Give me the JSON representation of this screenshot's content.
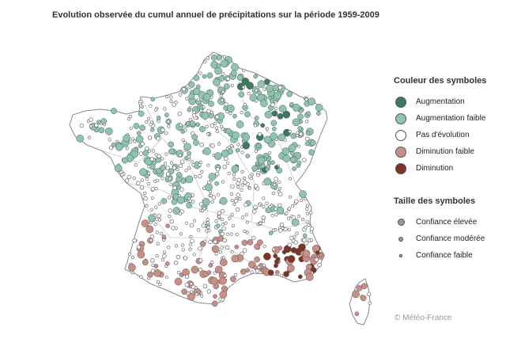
{
  "title": "Evolution observée du cumul annuel de précipitations sur la période 1959-2009",
  "legend_color": {
    "heading": "Couleur des symboles",
    "items": [
      {
        "label": "Augmentation",
        "color": "#3f7a5e"
      },
      {
        "label": "Augmentation faible",
        "color": "#8ec5ae"
      },
      {
        "label": "Pas d'évolution",
        "color": "#ffffff"
      },
      {
        "label": "Diminution faible",
        "color": "#c98f87"
      },
      {
        "label": "Diminution",
        "color": "#7e3324"
      }
    ]
  },
  "legend_size": {
    "heading": "Taille des symboles",
    "items": [
      {
        "label": "Confiance élevée",
        "size": "large"
      },
      {
        "label": "Confiance modérée",
        "size": "medium"
      },
      {
        "label": "Confiance faible",
        "size": "small"
      }
    ]
  },
  "credit": "© Météo-France",
  "colors": {
    "outline": "#888888",
    "region_border": "#c8c8c8",
    "symbol_stroke": "#555555"
  }
}
